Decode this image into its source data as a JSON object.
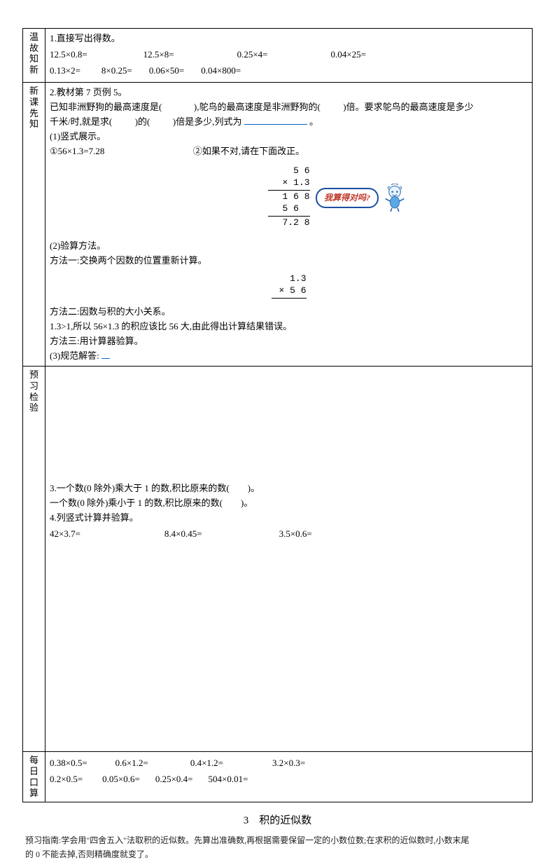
{
  "colors": {
    "text": "#000000",
    "underline": "#0066cc",
    "bubble_border": "#1b4fa0",
    "bubble_text": "#c0392b",
    "mascot_body": "#5aa9e6",
    "mascot_dark": "#2b6cb0"
  },
  "rows": {
    "wengu": {
      "label1": "温故",
      "label2": "知新",
      "line1": "1.直接写出得数。",
      "eqs1": [
        "12.5×0.8=",
        "12.5×8=",
        "0.25×4=",
        "0.04×25="
      ],
      "gaps1": [
        0,
        80,
        90,
        90
      ],
      "eqs2": [
        "0.13×2=",
        "8×0.25=",
        "0.06×50=",
        "0.04×800="
      ],
      "gaps2": [
        0,
        30,
        24,
        24
      ]
    },
    "xinke": {
      "label1": "新课",
      "label2": "先知",
      "l1": "2.教材第 7 页例 5。",
      "l2a": "已知非洲野狗的最高速度是(",
      "l2b": "),鸵鸟的最高速度是非洲野狗的(",
      "l2c": ")倍。要求鸵鸟的最高速度是多少",
      "l3a": "千米/时,就是求(",
      "l3b": ")的(",
      "l3c": ")倍是多少,列式为",
      "l3d": "。",
      "l4": "(1)竖式展示。",
      "l5a": "①56×1.3=7.28",
      "l5b": "②如果不对,请在下面改正。",
      "calc1": [
        "  5 6",
        "× 1.3",
        " 1 6 8",
        " 5 6  ",
        " 7.2 8"
      ],
      "bubble": "我算得对吗?",
      "l6": "(2)验算方法。",
      "l7": "方法一:交换两个因数的位置重新计算。",
      "calc2": [
        "  1.3",
        "× 5 6"
      ],
      "l8": "方法二:因数与积的大小关系。",
      "l9": "1.3>1,所以 56×1.3 的积应该比 56 大,由此得出计算结果错误。",
      "l10": "方法三:用计算器验算。",
      "l11": "(3)规范解答:"
    },
    "yuxi": {
      "label1": "预习",
      "label2": "检验",
      "l1": "3.一个数(0 除外)乘大于 1 的数,积比原来的数(　　)。",
      "l2": "一个数(0 除外)乘小于 1 的数,积比原来的数(　　)。",
      "l3": "4.列竖式计算并验算。",
      "eqs": [
        "42×3.7=",
        "8.4×0.45=",
        "3.5×0.6="
      ],
      "gaps": [
        0,
        120,
        110
      ]
    },
    "meiri": {
      "label1": "每日",
      "label2": "口算",
      "eqs1": [
        "0.38×0.5=",
        "0.6×1.2=",
        "0.4×1.2=",
        "3.2×0.3="
      ],
      "gaps1": [
        0,
        40,
        60,
        70
      ],
      "eqs2": [
        "0.2×0.5=",
        "0.05×0.6=",
        "0.25×0.4=",
        "504×0.01="
      ],
      "gaps2": [
        0,
        28,
        22,
        22
      ]
    }
  },
  "footer": {
    "title": "3　积的近似数",
    "guide_label": "预习指南:",
    "guide_text1": "学会用\"四舍五入\"法取积的近似数。先算出准确数,再根据需要保留一定的小数位数;在求积的近似数时,小数末尾",
    "guide_text2": "的 0 不能去掉,否则精确度就变了。"
  }
}
